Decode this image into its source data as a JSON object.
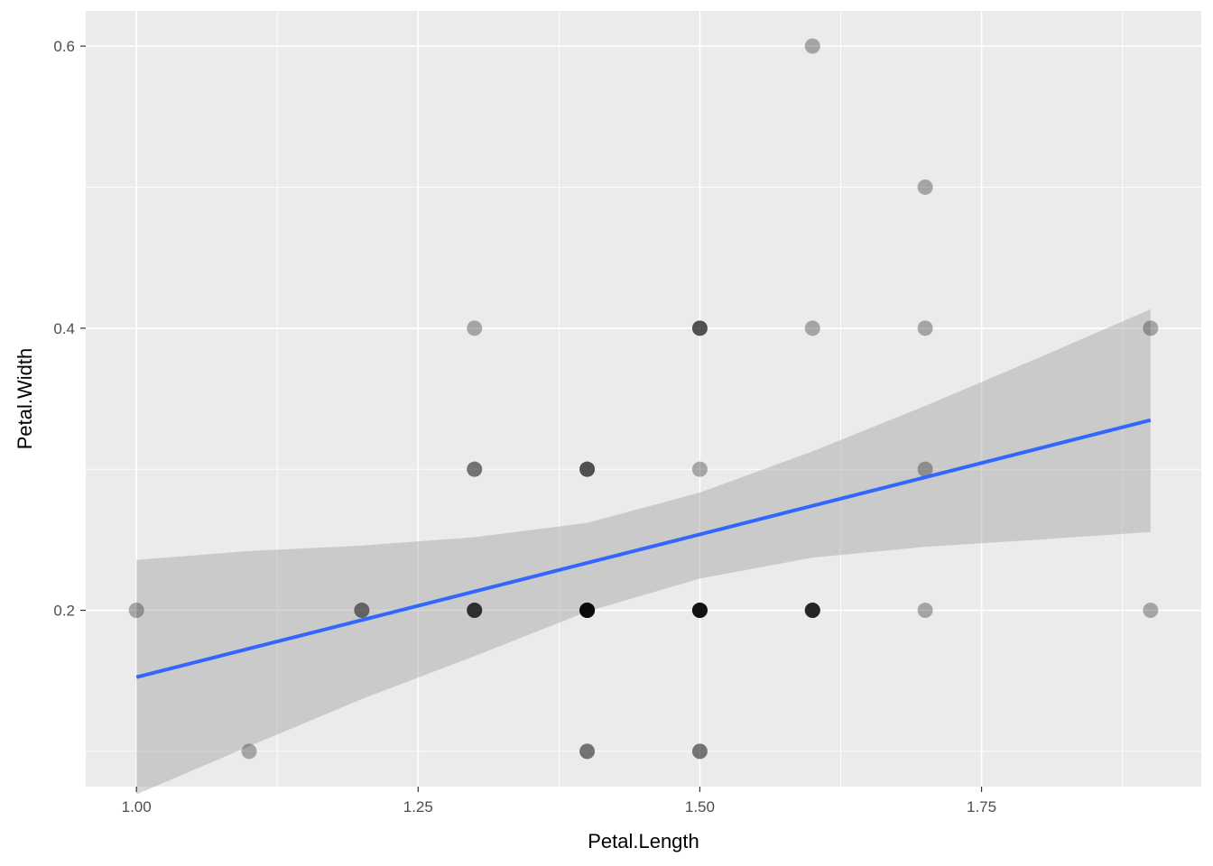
{
  "chart_data": {
    "type": "scatter",
    "title": "",
    "xlabel": "Petal.Length",
    "ylabel": "Petal.Width",
    "xlim": [
      0.955,
      1.945
    ],
    "ylim": [
      0.075,
      0.625
    ],
    "x_ticks": [
      1.0,
      1.25,
      1.5,
      1.75
    ],
    "x_tick_labels": [
      "1.00",
      "1.25",
      "1.50",
      "1.75"
    ],
    "y_ticks": [
      0.2,
      0.4,
      0.6
    ],
    "y_tick_labels": [
      "0.2",
      "0.4",
      "0.6"
    ],
    "grid": true,
    "point_alpha": 0.3,
    "panel_color": "#ebebeb",
    "grid_color": "#ffffff",
    "point_color": "#000000",
    "smooth_color": "#3366ff",
    "ribbon_color": "#999999",
    "points": [
      [
        1.4,
        0.2
      ],
      [
        1.4,
        0.2
      ],
      [
        1.3,
        0.2
      ],
      [
        1.5,
        0.2
      ],
      [
        1.4,
        0.2
      ],
      [
        1.7,
        0.4
      ],
      [
        1.4,
        0.3
      ],
      [
        1.5,
        0.2
      ],
      [
        1.4,
        0.2
      ],
      [
        1.5,
        0.1
      ],
      [
        1.5,
        0.2
      ],
      [
        1.6,
        0.2
      ],
      [
        1.4,
        0.1
      ],
      [
        1.1,
        0.1
      ],
      [
        1.2,
        0.2
      ],
      [
        1.5,
        0.4
      ],
      [
        1.3,
        0.4
      ],
      [
        1.4,
        0.3
      ],
      [
        1.7,
        0.3
      ],
      [
        1.5,
        0.3
      ],
      [
        1.7,
        0.2
      ],
      [
        1.5,
        0.4
      ],
      [
        1.0,
        0.2
      ],
      [
        1.7,
        0.5
      ],
      [
        1.9,
        0.2
      ],
      [
        1.6,
        0.2
      ],
      [
        1.6,
        0.4
      ],
      [
        1.5,
        0.2
      ],
      [
        1.4,
        0.2
      ],
      [
        1.6,
        0.2
      ],
      [
        1.6,
        0.2
      ],
      [
        1.5,
        0.4
      ],
      [
        1.5,
        0.1
      ],
      [
        1.4,
        0.2
      ],
      [
        1.5,
        0.2
      ],
      [
        1.2,
        0.2
      ],
      [
        1.3,
        0.2
      ],
      [
        1.4,
        0.1
      ],
      [
        1.3,
        0.2
      ],
      [
        1.5,
        0.2
      ],
      [
        1.3,
        0.3
      ],
      [
        1.3,
        0.3
      ],
      [
        1.3,
        0.2
      ],
      [
        1.6,
        0.6
      ],
      [
        1.9,
        0.4
      ],
      [
        1.4,
        0.3
      ],
      [
        1.6,
        0.2
      ],
      [
        1.4,
        0.2
      ],
      [
        1.5,
        0.2
      ],
      [
        1.4,
        0.2
      ]
    ],
    "smooth": {
      "x": [
        1.0,
        1.9
      ],
      "y": [
        0.1526,
        0.3348
      ]
    },
    "confidence_band": {
      "x": [
        1.0,
        1.1,
        1.2,
        1.3,
        1.4,
        1.5,
        1.6,
        1.7,
        1.8,
        1.9
      ],
      "lower": [
        0.0695,
        0.1036,
        0.1371,
        0.1675,
        0.1991,
        0.2225,
        0.2374,
        0.245,
        0.2501,
        0.2555
      ],
      "upper": [
        0.2357,
        0.242,
        0.2459,
        0.2518,
        0.262,
        0.2835,
        0.3127,
        0.3449,
        0.3788,
        0.4134
      ]
    }
  }
}
